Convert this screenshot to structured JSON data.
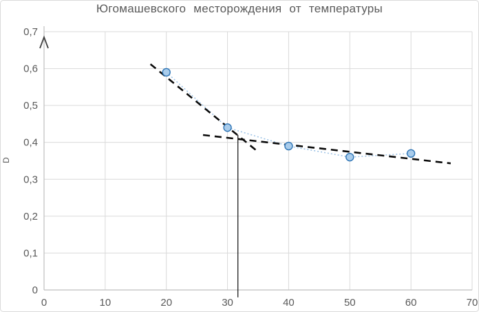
{
  "window": {
    "background": "#ffffff",
    "border_color": "#D9D9D9"
  },
  "chart_data": {
    "type": "scatter",
    "title": "Югомашевского месторождения от температуры",
    "xlabel": "",
    "ylabel": "D",
    "xlim": [
      0,
      70
    ],
    "ylim": [
      0,
      0.7
    ],
    "x_ticks": [
      0,
      10,
      20,
      30,
      40,
      50,
      60,
      70
    ],
    "x_tick_labels": [
      "0",
      "10",
      "20",
      "30",
      "40",
      "50",
      "60",
      "70"
    ],
    "y_ticks": [
      0,
      0.1,
      0.2,
      0.3,
      0.4,
      0.5,
      0.6,
      0.7
    ],
    "y_tick_labels": [
      "0",
      "0,1",
      "0,2",
      "0,3",
      "0,4",
      "0,5",
      "0,6",
      "0,7"
    ],
    "grid": true,
    "legend": "none",
    "grid_color": "#D9D9D9",
    "axis_color": "#BFBFBF",
    "tick_color": "#595959",
    "y_axis_arrow": true,
    "series": [
      {
        "name": "measured-points",
        "type": "scatter-line",
        "line_style": "dotted",
        "color": "#9DC3E6",
        "marker_fill": "#A9CCEB",
        "marker_stroke": "#2E75B6",
        "x": [
          20,
          30,
          40,
          50,
          60
        ],
        "y": [
          0.59,
          0.44,
          0.39,
          0.36,
          0.37
        ]
      },
      {
        "name": "trendline-steep",
        "type": "line",
        "line_style": "dashed",
        "color": "#0a0a0a",
        "x": [
          17.4,
          34.8
        ],
        "y": [
          0.612,
          0.377
        ]
      },
      {
        "name": "trendline-shallow",
        "type": "line",
        "line_style": "dashed",
        "color": "#0a0a0a",
        "x": [
          26,
          66.5
        ],
        "y": [
          0.42,
          0.343
        ]
      },
      {
        "name": "intersection-drop-line",
        "type": "line",
        "line_style": "solid",
        "color": "#0a0a0a",
        "x": [
          31.7,
          31.7
        ],
        "y": [
          0.42,
          -0.02
        ]
      }
    ]
  }
}
